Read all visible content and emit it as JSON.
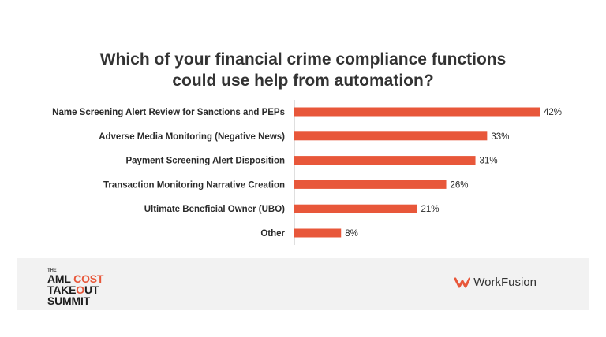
{
  "title_line1": "Which of your financial crime compliance functions",
  "title_line2": "could use help from automation?",
  "chart_data": {
    "type": "bar",
    "orientation": "horizontal",
    "title": "Which of your financial crime compliance functions could use help from automation?",
    "categories": [
      "Name Screening Alert Review for Sanctions and PEPs",
      "Adverse Media Monitoring (Negative News)",
      "Payment Screening Alert Disposition",
      "Transaction Monitoring Narrative Creation",
      "Ultimate Beneficial Owner (UBO)",
      "Other"
    ],
    "values": [
      42,
      33,
      31,
      26,
      21,
      8
    ],
    "value_labels": [
      "42%",
      "33%",
      "31%",
      "26%",
      "21%",
      "8%"
    ],
    "unit": "%",
    "xlim": [
      0,
      42
    ],
    "bar_color": "#e8573a",
    "grid": false,
    "legend": "none"
  },
  "footer": {
    "summit_the": "THE",
    "summit_line1_a": "AML ",
    "summit_line1_b": "COST",
    "summit_line2_a": "TAKE",
    "summit_line2_b": "O",
    "summit_line2_c": "UT",
    "summit_line3": "SUMMIT",
    "brand_icon": "workfusion-logo-icon",
    "brand_name": "WorkFusion",
    "accent_color": "#e8573a"
  }
}
